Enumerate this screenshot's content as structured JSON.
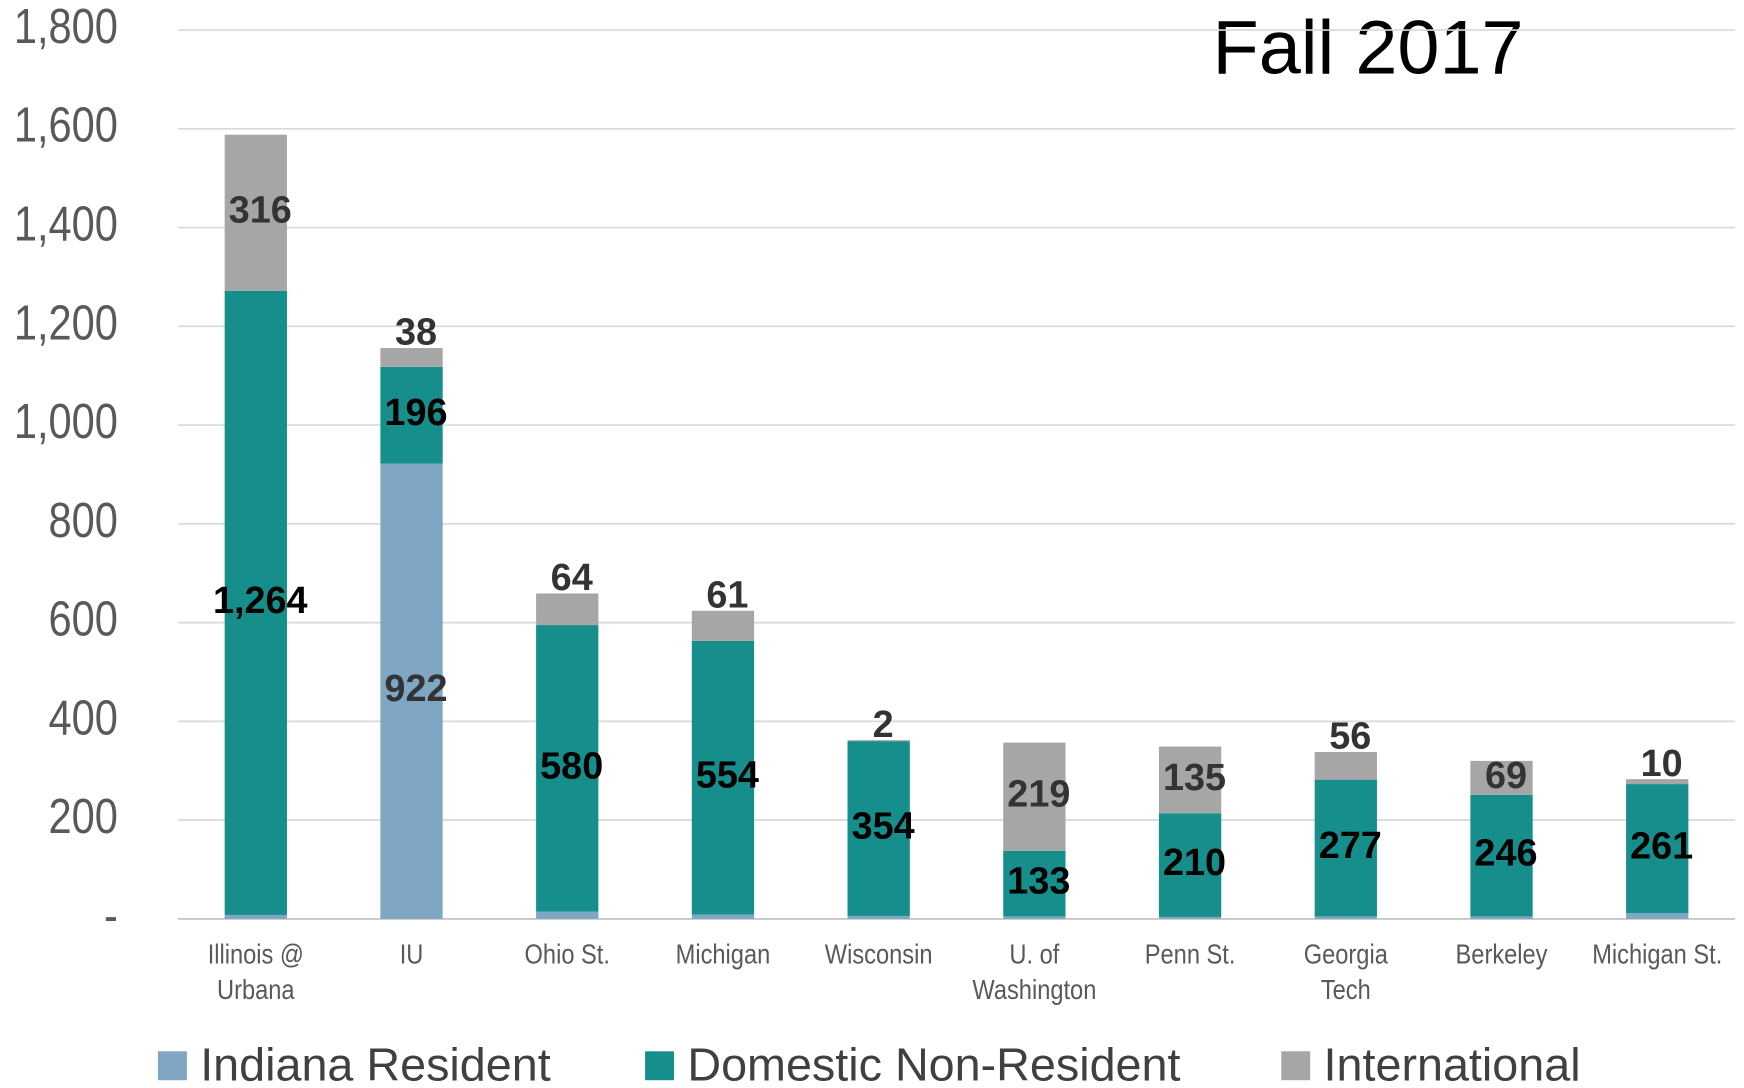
{
  "chart_data": {
    "type": "stacked_bar",
    "title": "Fall 2017",
    "categories": [
      "Illinois @\nUrbana",
      "IU",
      "Ohio St.",
      "Michigan",
      "Wisconsin",
      "U. of\nWashington",
      "Penn St.",
      "Georgia\nTech",
      "Berkeley",
      "Michigan St."
    ],
    "series": [
      {
        "name": "Indiana Resident",
        "color": "#7fa6c2",
        "values": [
          8,
          922,
          15,
          9,
          6,
          5,
          4,
          5,
          5,
          12
        ],
        "value_labels": [
          null,
          "922",
          null,
          null,
          null,
          null,
          null,
          null,
          null,
          null
        ]
      },
      {
        "name": "Domestic Non-Resident",
        "color": "#158e8c",
        "values": [
          1264,
          196,
          580,
          554,
          354,
          133,
          210,
          277,
          246,
          261
        ],
        "value_labels": [
          "1,264",
          "196",
          "580",
          "554",
          "354",
          "133",
          "210",
          "277",
          "246",
          "261"
        ]
      },
      {
        "name": "International",
        "color": "#a6a6a6",
        "values": [
          316,
          38,
          64,
          61,
          2,
          219,
          135,
          56,
          69,
          10
        ]
      }
    ],
    "ylim": [
      0,
      1800
    ],
    "yticks": [
      {
        "value": 0,
        "label": "-"
      },
      200,
      400,
      600,
      800,
      {
        "value": 1000,
        "label": "1,000"
      },
      {
        "value": 1200,
        "label": "1,200"
      },
      {
        "value": 1400,
        "label": "1,400"
      },
      {
        "value": 1600,
        "label": "1,600"
      },
      {
        "value": 1800,
        "label": "1,800"
      }
    ],
    "grid": true,
    "legend": "bottom"
  }
}
